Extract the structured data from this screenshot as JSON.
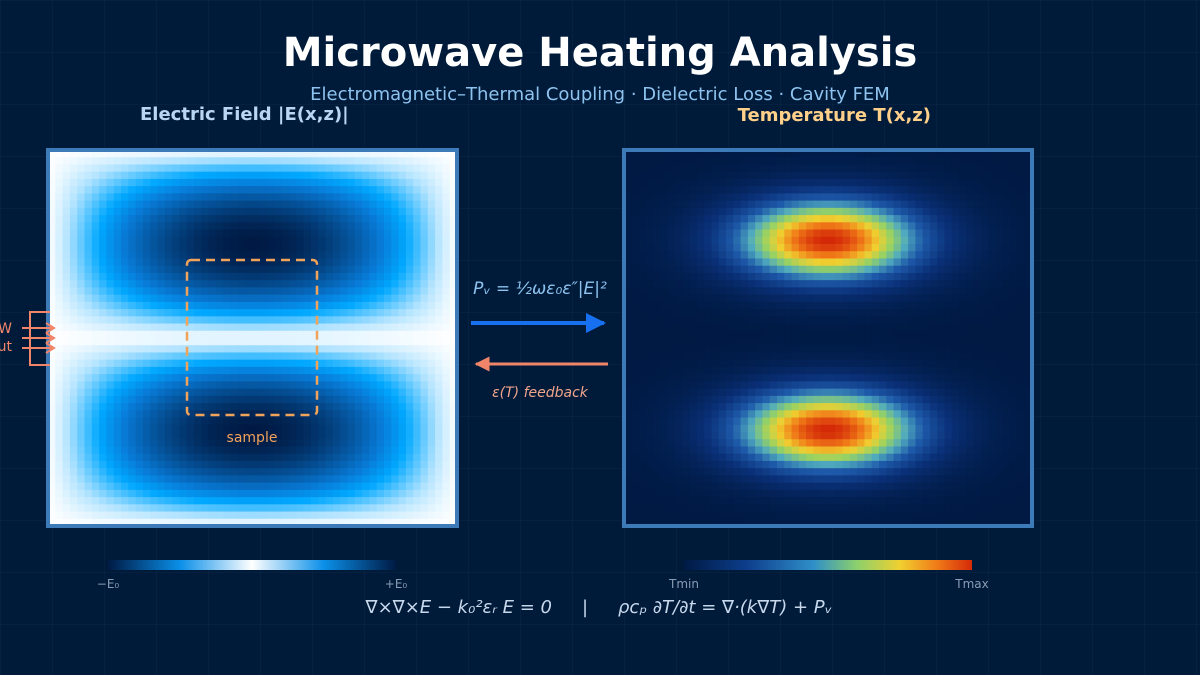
{
  "header": {
    "title": "Microwave Heating Analysis",
    "subtitle": "Electromagnetic–Thermal Coupling  ·  Dielectric Loss  ·  Cavity FEM"
  },
  "field_panel": {
    "title": "Electric Field  |E(x,z)|",
    "sample_label": "sample",
    "port_label_1": "MW",
    "port_label_2": "ut",
    "colorbar_min": "−E₀",
    "colorbar_max": "+E₀"
  },
  "temp_panel": {
    "title": "Temperature  T(x,z)",
    "colorbar_min": "Tmin",
    "colorbar_max": "Tmax"
  },
  "coupling": {
    "forward_label": "Pᵥ = ½ωε₀ε″|E|²",
    "feedback_label": "ε(T) feedback"
  },
  "footer": {
    "maxwell_eq": "∇×∇×E − k₀²εᵣ E = 0",
    "separator": "|",
    "heat_eq": "ρcₚ ∂T/∂t = ∇·(k∇T) + Pᵥ"
  },
  "colors": {
    "background": "#001b3a",
    "panel_border": "#3d7ab8",
    "accent_orange": "#f2a35a",
    "arrow_blue": "#1670f0",
    "arrow_salmon": "#f0856a",
    "field_title": "#b8d6f2",
    "temp_title": "#ffd08a"
  }
}
